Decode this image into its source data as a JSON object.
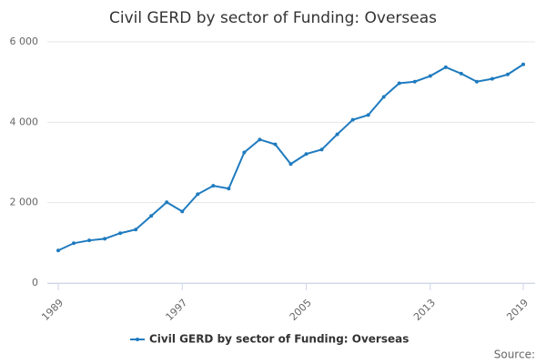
{
  "chart_data": {
    "type": "line",
    "title": "Civil GERD by sector of Funding: Overseas",
    "x": [
      1989,
      1990,
      1991,
      1992,
      1993,
      1994,
      1995,
      1996,
      1997,
      1998,
      1999,
      2000,
      2001,
      2002,
      2003,
      2004,
      2005,
      2006,
      2007,
      2008,
      2009,
      2010,
      2011,
      2012,
      2013,
      2014,
      2015,
      2016,
      2017,
      2018,
      2019
    ],
    "series": [
      {
        "name": "Civil GERD by sector of Funding: Overseas",
        "color": "#1f7bbf",
        "values": [
          810,
          990,
          1060,
          1100,
          1240,
          1330,
          1670,
          2010,
          1780,
          2210,
          2420,
          2350,
          3250,
          3570,
          3450,
          2960,
          3210,
          3320,
          3700,
          4060,
          4180,
          4630,
          4970,
          5010,
          5150,
          5370,
          5210,
          5010,
          5080,
          5190,
          5440
        ]
      }
    ],
    "xlim": [
      1989,
      2019
    ],
    "xticks": [
      1989,
      1997,
      2005,
      2013,
      2019
    ],
    "ylim": [
      0,
      6000
    ],
    "yticks": [
      0,
      {
        "value": 2000,
        "label": "2 000"
      },
      {
        "value": 4000,
        "label": "4 000"
      },
      {
        "value": 6000,
        "label": "6 000"
      }
    ],
    "grid": true,
    "source": "Source:"
  }
}
